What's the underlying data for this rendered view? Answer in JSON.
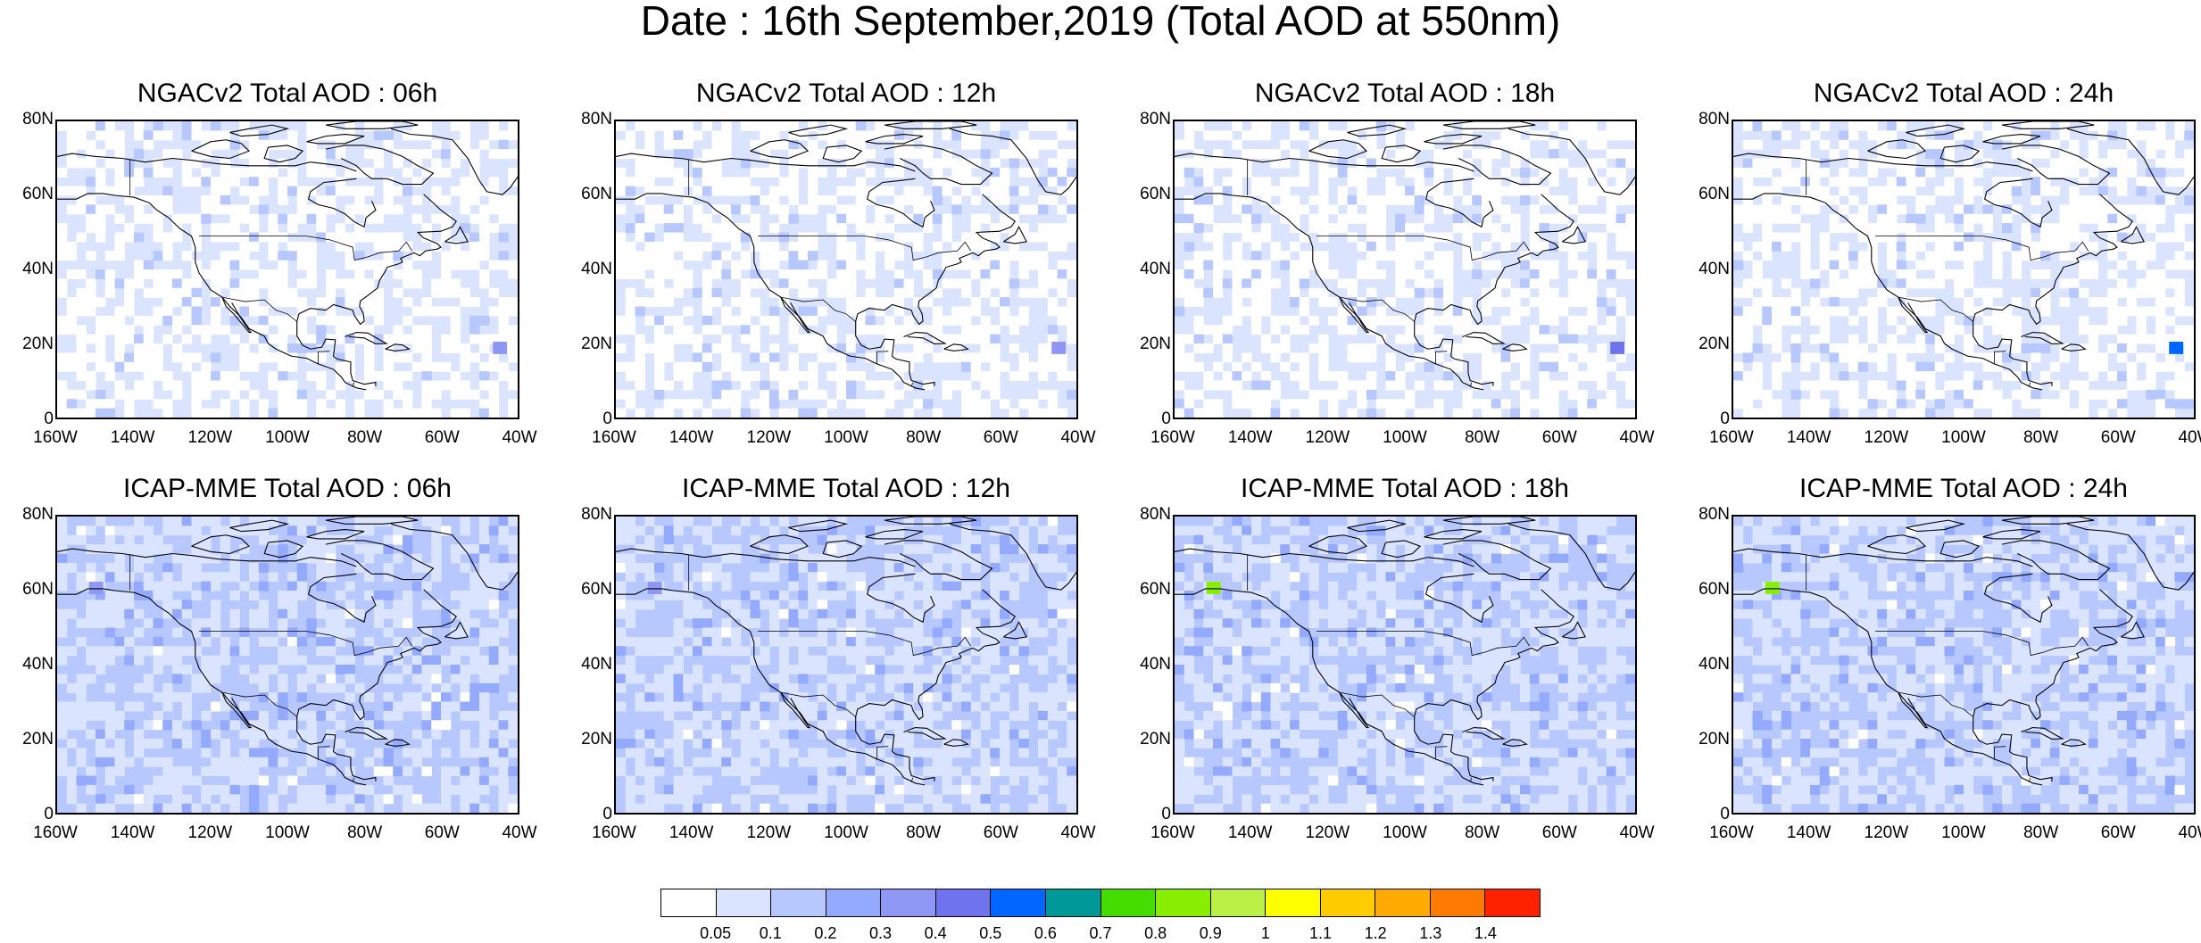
{
  "title": "Date : 16th September,2019 (Total AOD at 550nm)",
  "y_ticks": [
    "80N",
    "60N",
    "40N",
    "20N",
    "0"
  ],
  "x_ticks": [
    "160W",
    "140W",
    "120W",
    "100W",
    "80W",
    "60W",
    "40W"
  ],
  "panels": [
    {
      "title": "NGACv2 Total AOD : 06h",
      "model": "NGACv2",
      "forecast_hour": "06h",
      "background_level": 0.05,
      "dominant_level": "0.05-0.1",
      "peak_level": "0.3-0.4"
    },
    {
      "title": "NGACv2 Total AOD : 12h",
      "model": "NGACv2",
      "forecast_hour": "12h",
      "background_level": 0.05,
      "dominant_level": "0.05-0.1",
      "peak_level": "0.3-0.4"
    },
    {
      "title": "NGACv2 Total AOD : 18h",
      "model": "NGACv2",
      "forecast_hour": "18h",
      "background_level": 0.05,
      "dominant_level": "0.05-0.1",
      "peak_level": "0.4-0.5"
    },
    {
      "title": "NGACv2 Total AOD : 24h",
      "model": "NGACv2",
      "forecast_hour": "24h",
      "background_level": 0.05,
      "dominant_level": "0.05-0.1",
      "peak_level": "0.5-0.6"
    },
    {
      "title": "ICAP-MME Total AOD : 06h",
      "model": "ICAP-MME",
      "forecast_hour": "06h",
      "background_level": 0.1,
      "dominant_level": "0.1-0.2",
      "peak_level": "0.3-0.4"
    },
    {
      "title": "ICAP-MME Total AOD : 12h",
      "model": "ICAP-MME",
      "forecast_hour": "12h",
      "background_level": 0.1,
      "dominant_level": "0.1-0.2",
      "peak_level": "0.3-0.4"
    },
    {
      "title": "ICAP-MME Total AOD : 18h",
      "model": "ICAP-MME",
      "forecast_hour": "18h",
      "background_level": 0.1,
      "dominant_level": "0.1-0.2",
      "peak_level": "0.8-0.9"
    },
    {
      "title": "ICAP-MME Total AOD : 24h",
      "model": "ICAP-MME",
      "forecast_hour": "24h",
      "background_level": 0.1,
      "dominant_level": "0.1-0.2",
      "peak_level": "0.8-0.9"
    }
  ],
  "colorbar": {
    "labels": [
      "0.05",
      "0.1",
      "0.2",
      "0.3",
      "0.4",
      "0.5",
      "0.6",
      "0.7",
      "0.8",
      "0.9",
      "1",
      "1.1",
      "1.2",
      "1.3",
      "1.4"
    ],
    "colors": [
      "#ffffff",
      "#dbe4ff",
      "#b7c7ff",
      "#93aaff",
      "#8e97f4",
      "#6f74ee",
      "#0066ff",
      "#009999",
      "#44dd00",
      "#88ee00",
      "#bbf044",
      "#ffff00",
      "#ffcc00",
      "#ffaa00",
      "#ff7a00",
      "#ff2200"
    ]
  }
}
